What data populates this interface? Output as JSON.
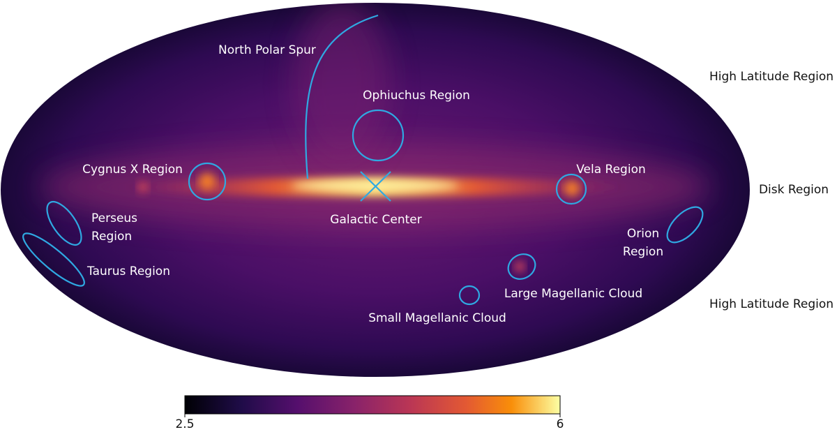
{
  "annotations": [
    {
      "lines": [
        "North Polar Spur"
      ]
    },
    {
      "lines": [
        "Ophiuchus Region"
      ]
    },
    {
      "lines": [
        "Cygnus X Region"
      ]
    },
    {
      "lines": [
        "Vela Region"
      ]
    },
    {
      "lines": [
        "Galactic Center"
      ]
    },
    {
      "lines": [
        "Perseus",
        "Region"
      ]
    },
    {
      "lines": [
        "Taurus Region"
      ]
    },
    {
      "lines": [
        "Orion",
        "Region"
      ]
    },
    {
      "lines": [
        "Large Magellanic Cloud"
      ]
    },
    {
      "lines": [
        "Small Magellanic Cloud"
      ]
    }
  ],
  "side_labels": [
    "High Latitude Region",
    "Disk Region",
    "High Latitude Region"
  ],
  "colorbar": {
    "min": 2.5,
    "max": 6,
    "ticks": [
      2.5,
      6
    ]
  }
}
